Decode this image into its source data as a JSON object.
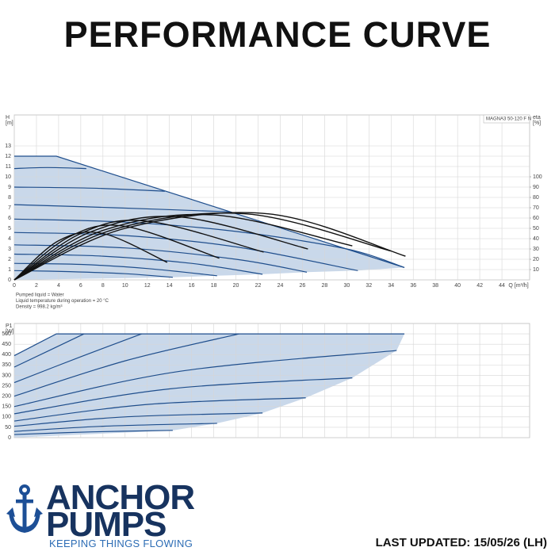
{
  "header": {
    "title": "PERFORMANCE CURVE"
  },
  "logo": {
    "line1": "ANCHOR",
    "line2": "PUMPS",
    "tagline": "KEEPING THINGS FLOWING"
  },
  "footer": {
    "updated": "LAST UPDATED: 15/05/26 (LH)"
  },
  "chart_data": [
    {
      "type": "line",
      "annotation": "MAGNA3 50-120 F N",
      "y_label": [
        "H",
        "[m]"
      ],
      "y2_label": [
        "eta",
        "[%]"
      ],
      "x_label": "Q [m³/h]",
      "notes": [
        "Pumped liquid = Water",
        "Liquid temperature during operation = 20 °C",
        "Density = 998.2 kg/m³"
      ],
      "xlim": [
        0,
        46.5
      ],
      "xticks": [
        0,
        2,
        4,
        6,
        8,
        10,
        12,
        14,
        16,
        18,
        20,
        22,
        24,
        26,
        28,
        30,
        32,
        34,
        36,
        38,
        40,
        42,
        44
      ],
      "ylim": [
        0,
        16
      ],
      "yticks": [
        0,
        1,
        2,
        3,
        4,
        5,
        6,
        7,
        8,
        9,
        10,
        11,
        12,
        13
      ],
      "y2lim": [
        0,
        160
      ],
      "y2ticks": [
        10,
        20,
        30,
        40,
        50,
        60,
        70,
        80,
        90,
        100
      ],
      "grid": true,
      "fill_color": "#c9d8ea",
      "series": [
        {
          "color": "#1f4e8c",
          "smooth": false,
          "x": [
            0,
            3.8,
            35.2
          ],
          "values": [
            12,
            12,
            1.2
          ]
        },
        {
          "color": "#1f4e8c",
          "x": [
            0,
            3,
            6.5
          ],
          "values": [
            10.8,
            10.9,
            10.8
          ]
        },
        {
          "color": "#1f4e8c",
          "x": [
            0,
            7,
            13.6
          ],
          "values": [
            9,
            8.9,
            8.6
          ]
        },
        {
          "color": "#1f4e8c",
          "x": [
            0,
            9,
            19.5
          ],
          "values": [
            7.3,
            7.0,
            6.6
          ]
        },
        {
          "color": "#1f4e8c",
          "x": [
            0,
            10,
            20,
            30,
            35.2
          ],
          "values": [
            5.9,
            5.6,
            4.7,
            3.0,
            1.2
          ]
        },
        {
          "color": "#1f4e8c",
          "x": [
            0,
            10,
            20,
            31
          ],
          "values": [
            4.6,
            4.3,
            3.2,
            0.9
          ]
        },
        {
          "color": "#1f4e8c",
          "x": [
            0,
            10,
            20,
            26.4
          ],
          "values": [
            3.4,
            3.1,
            2.0,
            0.75
          ]
        },
        {
          "color": "#1f4e8c",
          "x": [
            0,
            8,
            16,
            22.4
          ],
          "values": [
            2.5,
            2.3,
            1.6,
            0.55
          ]
        },
        {
          "color": "#1f4e8c",
          "x": [
            0,
            6,
            12,
            18.3
          ],
          "values": [
            1.6,
            1.5,
            1.1,
            0.4
          ]
        },
        {
          "color": "#1f4e8c",
          "x": [
            0,
            5,
            10,
            14.3
          ],
          "values": [
            0.9,
            0.8,
            0.6,
            0.25
          ]
        },
        {
          "color": "#111111",
          "axis": "y2",
          "x": [
            0,
            4,
            8,
            13.8
          ],
          "values": [
            0,
            38,
            45,
            17
          ]
        },
        {
          "color": "#111111",
          "axis": "y2",
          "x": [
            0,
            5,
            10,
            18.5
          ],
          "values": [
            0,
            42,
            52,
            21
          ]
        },
        {
          "color": "#111111",
          "axis": "y2",
          "x": [
            0,
            6,
            12,
            22.5
          ],
          "values": [
            0,
            45,
            57,
            27
          ]
        },
        {
          "color": "#111111",
          "axis": "y2",
          "x": [
            0,
            7,
            15,
            26.5
          ],
          "values": [
            0,
            47,
            61,
            30
          ]
        },
        {
          "color": "#111111",
          "axis": "y2",
          "x": [
            0,
            8,
            18,
            30.5
          ],
          "values": [
            0,
            48,
            63,
            33
          ]
        },
        {
          "color": "#111111",
          "axis": "y2",
          "x": [
            0,
            9,
            21,
            34
          ],
          "values": [
            0,
            49,
            64,
            28
          ]
        },
        {
          "color": "#111111",
          "axis": "y2",
          "x": [
            0,
            10,
            23,
            35.3
          ],
          "values": [
            0,
            50,
            64,
            23
          ]
        }
      ]
    },
    {
      "type": "line",
      "y_label": [
        "P1",
        "[W]"
      ],
      "xlim": [
        0,
        46.5
      ],
      "xticks": [
        0,
        2,
        4,
        6,
        8,
        10,
        12,
        14,
        16,
        18,
        20,
        22,
        24,
        26,
        28,
        30,
        32,
        34,
        36,
        38,
        40,
        42,
        44
      ],
      "xtick_labels": false,
      "ylim": [
        0,
        550
      ],
      "yticks": [
        0,
        50,
        100,
        150,
        200,
        250,
        300,
        350,
        400,
        450,
        500
      ],
      "grid": true,
      "fill_color": "#c9d8ea",
      "series": [
        {
          "color": "#1f4e8c",
          "smooth": false,
          "x": [
            0,
            3.8,
            35.2
          ],
          "values": [
            395,
            500,
            500
          ]
        },
        {
          "color": "#1f4e8c",
          "x": [
            0,
            6.3
          ],
          "values": [
            340,
            500
          ]
        },
        {
          "color": "#1f4e8c",
          "x": [
            0,
            6,
            11.5
          ],
          "values": [
            265,
            390,
            500
          ]
        },
        {
          "color": "#1f4e8c",
          "x": [
            0,
            10,
            20.3
          ],
          "values": [
            200,
            370,
            500
          ]
        },
        {
          "color": "#1f4e8c",
          "x": [
            0,
            15,
            34.5
          ],
          "values": [
            150,
            320,
            420
          ]
        },
        {
          "color": "#1f4e8c",
          "x": [
            0,
            14,
            30.5
          ],
          "values": [
            115,
            235,
            288
          ]
        },
        {
          "color": "#1f4e8c",
          "x": [
            0,
            12,
            26.3
          ],
          "values": [
            80,
            160,
            192
          ]
        },
        {
          "color": "#1f4e8c",
          "x": [
            0,
            10,
            22.4
          ],
          "values": [
            55,
            100,
            119
          ]
        },
        {
          "color": "#1f4e8c",
          "x": [
            0,
            8,
            18.3
          ],
          "values": [
            30,
            55,
            69
          ]
        },
        {
          "color": "#1f4e8c",
          "x": [
            0,
            7,
            14.3
          ],
          "values": [
            15,
            28,
            35
          ]
        }
      ]
    }
  ]
}
